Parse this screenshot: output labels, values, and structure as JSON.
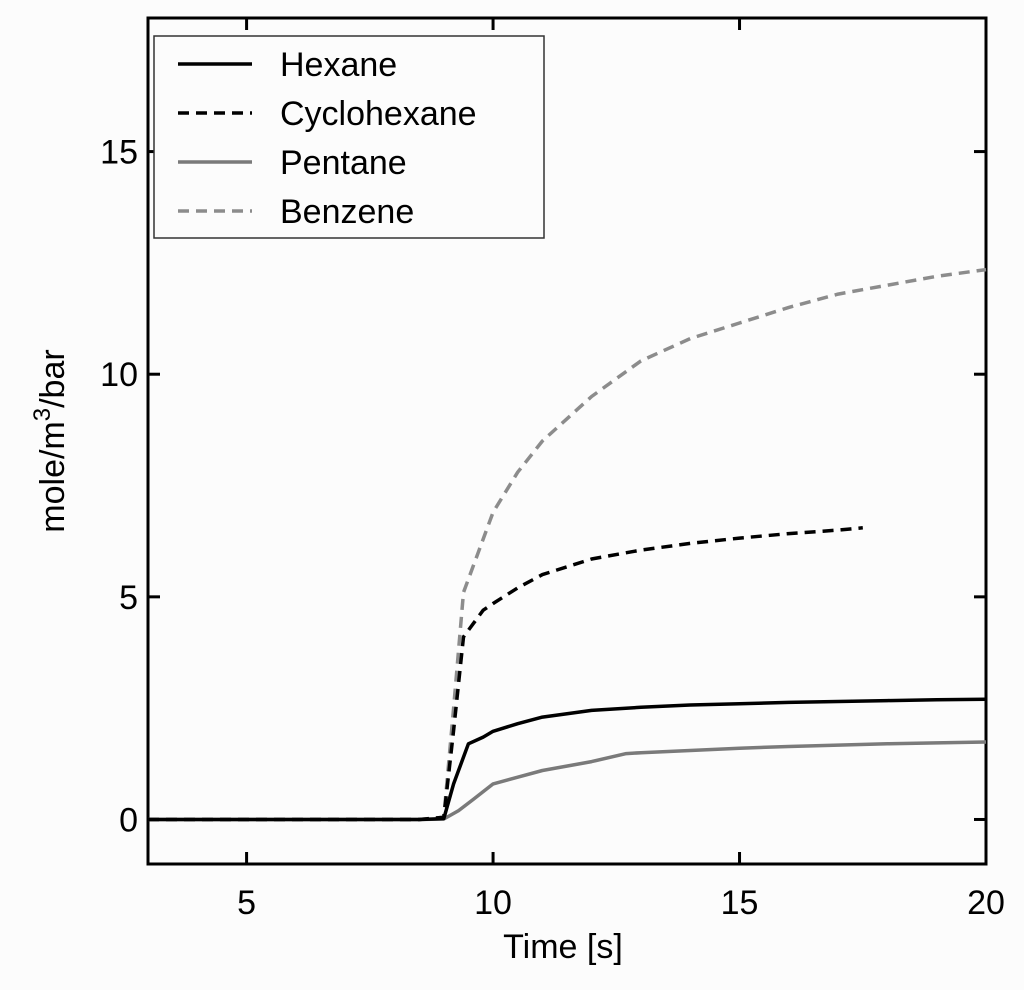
{
  "chart_data": {
    "type": "line",
    "xlabel": "Time [s]",
    "ylabel": "mole/m³/bar",
    "ylabel_parts": {
      "before": "mole/m",
      "sup": "3",
      "after": "/bar"
    },
    "xlim": [
      3,
      20
    ],
    "ylim": [
      -1,
      18
    ],
    "xticks": [
      5,
      10,
      15,
      20
    ],
    "yticks": [
      0,
      5,
      10,
      15
    ],
    "grid": false,
    "legend_position": "top-left",
    "series": [
      {
        "name": "Hexane",
        "color": "#000000",
        "dash": "solid",
        "x": [
          3,
          5,
          7,
          8.5,
          9.0,
          9.2,
          9.5,
          9.8,
          10.0,
          10.5,
          11,
          12,
          13,
          14,
          15,
          16,
          17,
          18,
          19,
          20
        ],
        "y": [
          0,
          0,
          0,
          0,
          0.02,
          0.8,
          1.7,
          1.85,
          1.98,
          2.15,
          2.3,
          2.45,
          2.52,
          2.57,
          2.6,
          2.63,
          2.65,
          2.67,
          2.69,
          2.7
        ]
      },
      {
        "name": "Cyclohexane",
        "color": "#000000",
        "dash": "dashed",
        "x": [
          3,
          5,
          7,
          8.5,
          9.0,
          9.2,
          9.4,
          9.6,
          9.8,
          10.0,
          10.5,
          11,
          12,
          13,
          14,
          15,
          16,
          17,
          17.5
        ],
        "y": [
          0,
          0,
          0,
          0,
          0.05,
          2.0,
          4.1,
          4.4,
          4.7,
          4.85,
          5.2,
          5.5,
          5.85,
          6.05,
          6.2,
          6.32,
          6.42,
          6.5,
          6.55
        ]
      },
      {
        "name": "Pentane",
        "color": "#7a7a7a",
        "dash": "solid",
        "x": [
          3,
          5,
          7,
          8.5,
          9.0,
          9.3,
          9.6,
          10.0,
          10.5,
          11,
          12,
          12.7,
          13,
          14,
          15,
          16,
          17,
          18,
          19,
          20
        ],
        "y": [
          0,
          0,
          0,
          0,
          0.01,
          0.2,
          0.45,
          0.8,
          0.95,
          1.1,
          1.3,
          1.48,
          1.5,
          1.55,
          1.6,
          1.64,
          1.67,
          1.7,
          1.72,
          1.74
        ]
      },
      {
        "name": "Benzene",
        "color": "#8c8c8c",
        "dash": "dashed",
        "x": [
          3,
          5,
          7,
          8.5,
          9.0,
          9.2,
          9.4,
          9.7,
          10.0,
          10.5,
          11,
          12,
          13,
          14,
          15,
          16,
          17,
          18,
          19,
          20
        ],
        "y": [
          0,
          0,
          0,
          0,
          0.05,
          2.5,
          5.1,
          6.0,
          6.9,
          7.8,
          8.5,
          9.5,
          10.3,
          10.8,
          11.15,
          11.5,
          11.8,
          12.0,
          12.2,
          12.35
        ]
      }
    ]
  }
}
